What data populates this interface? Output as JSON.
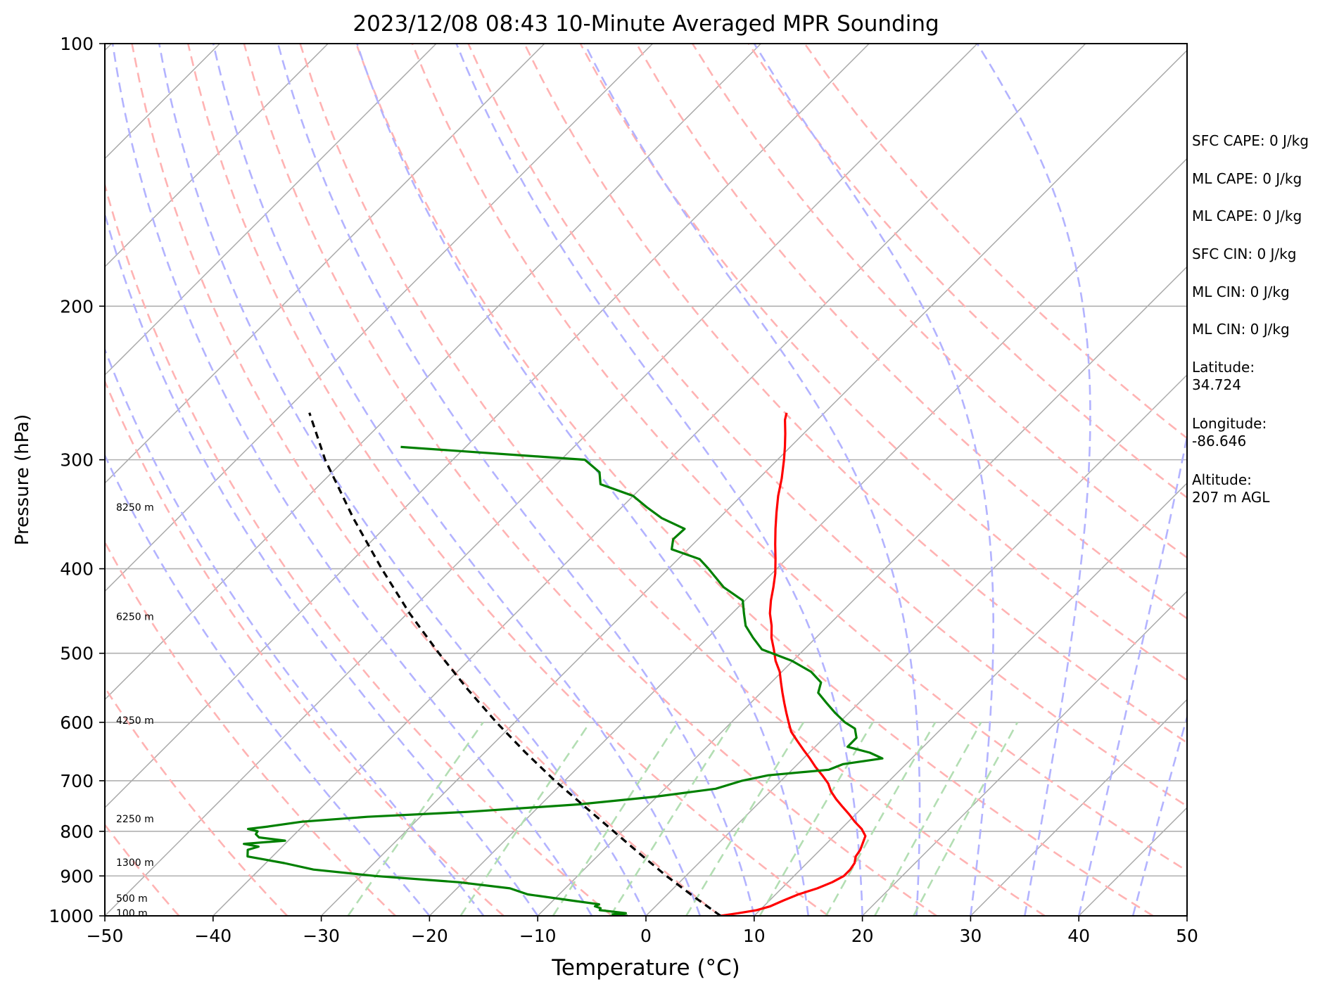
{
  "chart_data": {
    "type": "line",
    "title": "2023/12/08 08:43 10-Minute Averaged MPR Sounding",
    "xlabel": "Temperature (°C)",
    "ylabel": "Pressure (hPa)",
    "xlim": [
      -50,
      50
    ],
    "ylim": [
      1000,
      100
    ],
    "y_scale": "log",
    "x_ticks": [
      -50,
      -40,
      -30,
      -20,
      -10,
      0,
      10,
      20,
      30,
      40,
      50
    ],
    "x_tick_labels": [
      "−50",
      "−40",
      "−30",
      "−20",
      "−10",
      "0",
      "10",
      "20",
      "30",
      "40",
      "50"
    ],
    "y_ticks": [
      1000,
      900,
      800,
      700,
      600,
      500,
      400,
      300,
      200,
      100
    ],
    "y_tick_labels": [
      "1000",
      "900",
      "800",
      "700",
      "600",
      "500",
      "400",
      "300",
      "200",
      "100"
    ],
    "grid": true,
    "skew": 45,
    "colors": {
      "temperature": "#ff0000",
      "dewpoint": "#008000",
      "parcel": "#000000",
      "isotherm": "#aaaaaa",
      "dry_adiabat": "#ffb3b3",
      "moist_adiabat": "#b3b3ff",
      "mixing_ratio": "#b3deb3"
    },
    "series": [
      {
        "key": "temperature",
        "pressure": [
          1000,
          993,
          985,
          975,
          960,
          945,
          930,
          915,
          900,
          885,
          870,
          855,
          840,
          825,
          810,
          795,
          780,
          765,
          750,
          735,
          720,
          705,
          690,
          675,
          660,
          645,
          630,
          615,
          600,
          585,
          570,
          555,
          540,
          525,
          510,
          495,
          480,
          465,
          450,
          435,
          420,
          405,
          390,
          375,
          360,
          345,
          330,
          315,
          300,
          290,
          280,
          270,
          265
        ],
        "values": [
          6.9,
          8.3,
          9.7,
          10.6,
          11.3,
          12.1,
          13.3,
          14.1,
          14.6,
          14.6,
          14.4,
          13.9,
          13.7,
          13.3,
          12.9,
          11.9,
          10.6,
          9.4,
          8.1,
          6.8,
          5.6,
          4.6,
          3.3,
          1.9,
          0.6,
          -0.8,
          -2.2,
          -3.6,
          -4.7,
          -5.8,
          -6.9,
          -8.0,
          -9.1,
          -10.2,
          -11.6,
          -12.8,
          -14.1,
          -15.2,
          -16.5,
          -17.6,
          -18.6,
          -19.7,
          -21.0,
          -22.4,
          -23.8,
          -25.2,
          -26.6,
          -27.9,
          -29.4,
          -30.5,
          -31.7,
          -33.0,
          -33.5
        ]
      },
      {
        "key": "dewpoint",
        "pressure": [
          1000,
          996,
          993,
          985,
          980,
          975,
          970,
          960,
          945,
          930,
          915,
          900,
          885,
          870,
          855,
          840,
          833,
          827,
          820,
          813,
          806,
          800,
          795,
          790,
          780,
          770,
          760,
          745,
          730,
          715,
          700,
          690,
          680,
          670,
          660,
          650,
          640,
          625,
          610,
          600,
          585,
          570,
          555,
          540,
          525,
          510,
          495,
          480,
          465,
          450,
          435,
          420,
          400,
          390,
          380,
          370,
          360,
          350,
          340,
          330,
          320,
          310,
          300,
          290
        ],
        "values": [
          -1.7,
          -3.2,
          -2.1,
          -4.8,
          -4.9,
          -5.6,
          -5.4,
          -8.4,
          -12.9,
          -15.1,
          -20.4,
          -28.7,
          -35.0,
          -38.3,
          -42.3,
          -42.9,
          -42.2,
          -43.8,
          -40.3,
          -43.0,
          -43.6,
          -43.7,
          -44.8,
          -43.2,
          -40.5,
          -34.9,
          -26.1,
          -16.5,
          -10.1,
          -5.3,
          -3.6,
          -1.7,
          3.4,
          4.2,
          7.3,
          5.6,
          3.0,
          3.0,
          2.0,
          0.5,
          -1.3,
          -3.0,
          -4.7,
          -5.4,
          -7.3,
          -10.1,
          -13.9,
          -15.8,
          -17.6,
          -18.9,
          -20.2,
          -23.2,
          -26.3,
          -28.0,
          -31.5,
          -32.3,
          -32.2,
          -35.3,
          -37.7,
          -40.0,
          -44.1,
          -45.3,
          -47.8,
          -66.0
        ]
      },
      {
        "key": "parcel",
        "pressure": [
          1000,
          950,
          900,
          850,
          800,
          750,
          700,
          650,
          600,
          550,
          500,
          450,
          400,
          350,
          300,
          265
        ],
        "values": [
          6.9,
          2.6,
          -1.8,
          -6.2,
          -10.8,
          -15.7,
          -20.9,
          -26.2,
          -31.7,
          -37.4,
          -43.4,
          -49.8,
          -56.5,
          -63.8,
          -71.8,
          -77.6
        ]
      }
    ],
    "height_labels": [
      {
        "text": "8250 m",
        "pressure": 340
      },
      {
        "text": "6250 m",
        "pressure": 454
      },
      {
        "text": "4250 m",
        "pressure": 597
      },
      {
        "text": "2250 m",
        "pressure": 774
      },
      {
        "text": "1300 m",
        "pressure": 868
      },
      {
        "text": "500 m",
        "pressure": 955
      },
      {
        "text": "100 m",
        "pressure": 993
      }
    ],
    "dry_adiabats_theta_k": [
      230,
      240,
      250,
      260,
      270,
      280,
      290,
      300,
      310,
      320,
      330,
      340,
      350,
      360,
      370,
      380,
      390,
      400
    ],
    "moist_adiabats_thetaw_c": [
      -20,
      -15,
      -10,
      -5,
      0,
      5,
      10,
      15,
      20,
      25,
      30,
      35,
      40,
      45,
      50
    ],
    "mixing_ratios_gkg": [
      0.4,
      1,
      2,
      3,
      5,
      8,
      12,
      16,
      20
    ]
  },
  "info": {
    "sfc_cape": "SFC CAPE: 0 J/kg",
    "ml_cape": "ML CAPE: 0 J/kg",
    "ml_cape_2": "ML CAPE: 0 J/kg",
    "sfc_cin": "SFC CIN: 0 J/kg",
    "ml_cin": "ML CIN: 0 J/kg",
    "ml_cin_2": "ML CIN: 0 J/kg",
    "latitude": "Latitude:\n34.724",
    "longitude": "Longitude:\n-86.646",
    "altitude": "Altitude:\n207 m AGL"
  }
}
